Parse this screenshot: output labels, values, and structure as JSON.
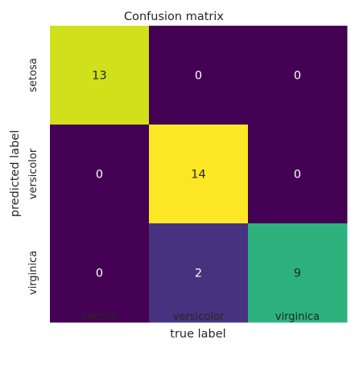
{
  "chart_data": {
    "type": "heatmap",
    "title": "Confusion matrix",
    "xlabel": "true label",
    "ylabel": "predicted label",
    "x_categories": [
      "setosa",
      "versicolor",
      "virginica"
    ],
    "y_categories": [
      "setosa",
      "versicolor",
      "virginica"
    ],
    "values": [
      [
        13,
        0,
        0
      ],
      [
        0,
        14,
        0
      ],
      [
        0,
        2,
        9
      ]
    ],
    "colormap": "viridis",
    "vmin": 0,
    "vmax": 14,
    "colorbar": false,
    "annot": true,
    "cell_colors": [
      [
        "#d0e11c",
        "#440154",
        "#440154"
      ],
      [
        "#440154",
        "#fde725",
        "#440154"
      ],
      [
        "#440154",
        "#46327e",
        "#2db27d"
      ]
    ],
    "annot_colors": {
      "on_dark": "#ffffff",
      "on_light": "#262626"
    }
  }
}
